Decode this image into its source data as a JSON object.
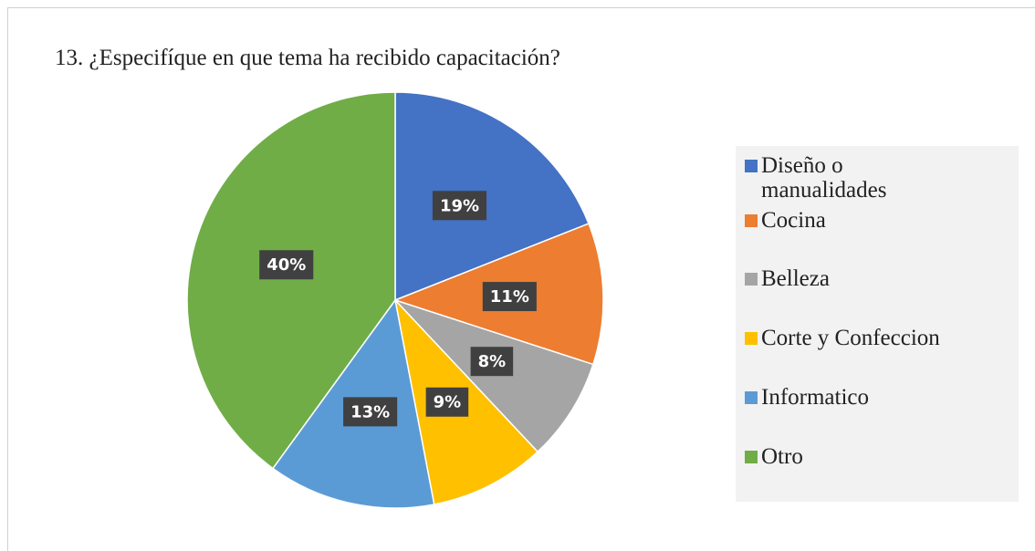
{
  "chart_data": {
    "type": "pie",
    "title": "13. ¿Especifíque en que tema ha recibido capacitación?",
    "categories": [
      "Diseño o manualidades",
      "Cocina",
      "Belleza",
      "Corte y Confeccion",
      "Informatico",
      "Otro"
    ],
    "values": [
      19,
      11,
      8,
      9,
      13,
      40
    ],
    "value_labels": [
      "19%",
      "11%",
      "8%",
      "9%",
      "13%",
      "40%"
    ],
    "colors": [
      "#4472c4",
      "#ed7d31",
      "#a5a5a5",
      "#ffc000",
      "#5b9bd5",
      "#70ad47"
    ],
    "legend": "right"
  }
}
